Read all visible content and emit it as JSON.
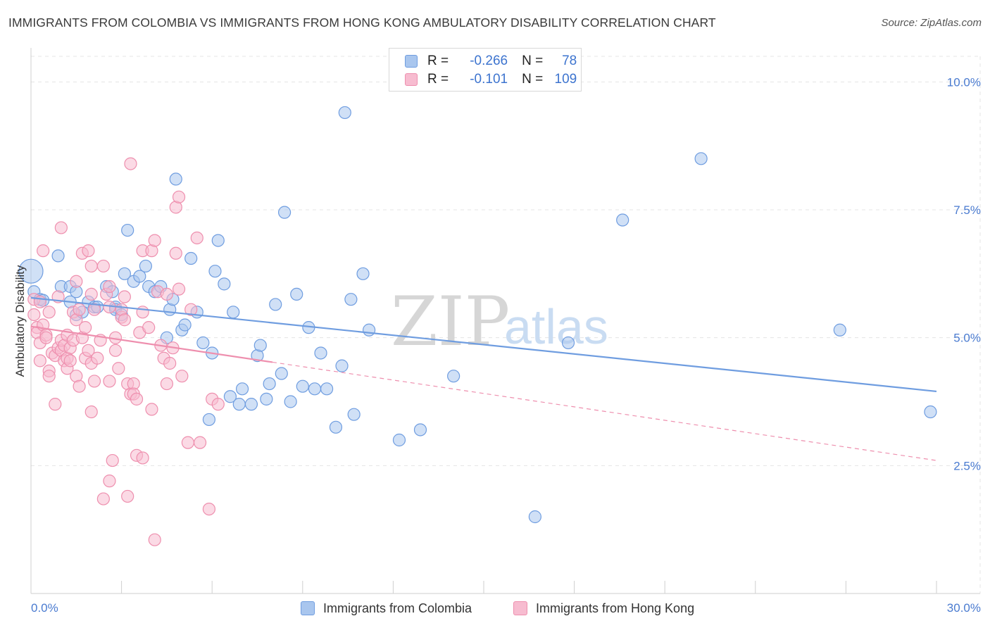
{
  "title": "IMMIGRANTS FROM COLOMBIA VS IMMIGRANTS FROM HONG KONG AMBULATORY DISABILITY CORRELATION CHART",
  "source": "Source: ZipAtlas.com",
  "watermark": {
    "part1": "ZIP",
    "part2": "atlas"
  },
  "legend": {
    "r_label": "R =",
    "n_label": "N =",
    "items": [
      {
        "name": "Immigrants from Colombia",
        "r": "-0.266",
        "n": "78",
        "fill": "#a9c6ee",
        "stroke": "#6f9de0"
      },
      {
        "name": "Immigrants from Hong Kong",
        "r": "-0.101",
        "n": "109",
        "fill": "#f7bcd0",
        "stroke": "#ee8fae"
      }
    ]
  },
  "chart_data": {
    "type": "scatter",
    "title": "IMMIGRANTS FROM COLOMBIA VS IMMIGRANTS FROM HONG KONG AMBULATORY DISABILITY CORRELATION CHART",
    "xlabel": "",
    "ylabel": "Ambulatory Disability",
    "xlim": [
      0,
      30
    ],
    "ylim": [
      0,
      10.5
    ],
    "x_tick_labels": [
      "0.0%",
      "30.0%"
    ],
    "y_ticks": [
      2.5,
      5.0,
      7.5,
      10.0
    ],
    "y_tick_labels": [
      "2.5%",
      "5.0%",
      "7.5%",
      "10.0%"
    ],
    "grid": true,
    "series": [
      {
        "name": "Immigrants from Colombia",
        "color": "#6f9de0",
        "fill": "#a9c6ee",
        "trend": {
          "x0": 0.0,
          "y0": 5.78,
          "x1": 30.0,
          "y1": 3.95,
          "dashed_from": null
        },
        "points": [
          [
            0.0,
            6.3
          ],
          [
            0.1,
            5.9
          ],
          [
            0.3,
            5.75
          ],
          [
            0.4,
            5.73
          ],
          [
            0.9,
            6.6
          ],
          [
            1.0,
            6.0
          ],
          [
            1.3,
            6.0
          ],
          [
            1.3,
            5.7
          ],
          [
            1.5,
            5.9
          ],
          [
            1.5,
            5.45
          ],
          [
            1.7,
            5.5
          ],
          [
            1.9,
            5.7
          ],
          [
            2.1,
            5.6
          ],
          [
            2.2,
            5.6
          ],
          [
            2.5,
            6.0
          ],
          [
            2.7,
            5.9
          ],
          [
            2.8,
            5.6
          ],
          [
            2.8,
            5.55
          ],
          [
            3.0,
            5.45
          ],
          [
            3.1,
            6.25
          ],
          [
            3.2,
            7.1
          ],
          [
            3.4,
            6.1
          ],
          [
            3.6,
            6.2
          ],
          [
            3.8,
            6.4
          ],
          [
            3.9,
            6.0
          ],
          [
            4.1,
            5.9
          ],
          [
            4.3,
            6.0
          ],
          [
            4.5,
            5.0
          ],
          [
            4.6,
            5.55
          ],
          [
            4.7,
            5.75
          ],
          [
            4.8,
            8.1
          ],
          [
            5.0,
            5.15
          ],
          [
            5.1,
            5.25
          ],
          [
            5.3,
            6.55
          ],
          [
            5.5,
            5.5
          ],
          [
            5.7,
            4.9
          ],
          [
            5.9,
            3.4
          ],
          [
            6.0,
            4.7
          ],
          [
            6.1,
            6.3
          ],
          [
            6.2,
            6.9
          ],
          [
            6.4,
            6.05
          ],
          [
            6.6,
            3.85
          ],
          [
            6.7,
            5.5
          ],
          [
            6.9,
            3.7
          ],
          [
            7.0,
            4.0
          ],
          [
            7.3,
            3.7
          ],
          [
            7.5,
            4.65
          ],
          [
            7.6,
            4.85
          ],
          [
            7.8,
            3.8
          ],
          [
            7.9,
            4.1
          ],
          [
            8.1,
            5.65
          ],
          [
            8.3,
            4.3
          ],
          [
            8.4,
            7.45
          ],
          [
            8.6,
            3.75
          ],
          [
            8.8,
            5.85
          ],
          [
            9.0,
            4.05
          ],
          [
            9.2,
            5.2
          ],
          [
            9.4,
            4.0
          ],
          [
            9.6,
            4.7
          ],
          [
            9.8,
            4.0
          ],
          [
            10.1,
            3.25
          ],
          [
            10.3,
            4.45
          ],
          [
            10.4,
            9.4
          ],
          [
            10.6,
            5.75
          ],
          [
            10.7,
            3.5
          ],
          [
            11.0,
            6.25
          ],
          [
            11.2,
            5.15
          ],
          [
            12.2,
            3.0
          ],
          [
            12.9,
            3.2
          ],
          [
            14.0,
            4.25
          ],
          [
            16.7,
            1.5
          ],
          [
            17.8,
            4.9
          ],
          [
            19.6,
            7.3
          ],
          [
            22.2,
            8.5
          ],
          [
            26.8,
            5.15
          ],
          [
            29.8,
            3.55
          ]
        ]
      },
      {
        "name": "Immigrants from Hong Kong",
        "color": "#ee8fae",
        "fill": "#f7bcd0",
        "trend": {
          "x0": 0.0,
          "y0": 5.22,
          "x1": 30.0,
          "y1": 2.6,
          "dashed_from": 8.0
        },
        "points": [
          [
            0.1,
            5.75
          ],
          [
            0.1,
            5.45
          ],
          [
            0.2,
            5.2
          ],
          [
            0.2,
            5.1
          ],
          [
            0.3,
            4.9
          ],
          [
            0.3,
            4.55
          ],
          [
            0.3,
            5.7
          ],
          [
            0.4,
            5.25
          ],
          [
            0.4,
            6.7
          ],
          [
            0.5,
            5.05
          ],
          [
            0.5,
            5.0
          ],
          [
            0.6,
            4.35
          ],
          [
            0.6,
            4.25
          ],
          [
            0.6,
            5.5
          ],
          [
            0.7,
            4.7
          ],
          [
            0.8,
            3.7
          ],
          [
            0.8,
            4.65
          ],
          [
            0.9,
            5.8
          ],
          [
            0.9,
            4.8
          ],
          [
            1.0,
            4.75
          ],
          [
            1.0,
            7.15
          ],
          [
            1.0,
            4.95
          ],
          [
            1.1,
            4.55
          ],
          [
            1.1,
            4.85
          ],
          [
            1.2,
            4.4
          ],
          [
            1.2,
            4.6
          ],
          [
            1.2,
            5.05
          ],
          [
            1.3,
            4.8
          ],
          [
            1.3,
            4.55
          ],
          [
            1.4,
            5.5
          ],
          [
            1.4,
            4.95
          ],
          [
            1.5,
            4.25
          ],
          [
            1.5,
            5.35
          ],
          [
            1.5,
            6.1
          ],
          [
            1.6,
            4.05
          ],
          [
            1.6,
            5.55
          ],
          [
            1.7,
            6.65
          ],
          [
            1.7,
            5.0
          ],
          [
            1.8,
            4.6
          ],
          [
            1.8,
            5.2
          ],
          [
            1.9,
            4.75
          ],
          [
            1.9,
            6.7
          ],
          [
            2.0,
            6.4
          ],
          [
            2.0,
            5.85
          ],
          [
            2.0,
            4.5
          ],
          [
            2.0,
            3.55
          ],
          [
            2.1,
            4.15
          ],
          [
            2.1,
            5.55
          ],
          [
            2.2,
            4.6
          ],
          [
            2.3,
            4.95
          ],
          [
            2.4,
            6.4
          ],
          [
            2.4,
            1.85
          ],
          [
            2.5,
            5.85
          ],
          [
            2.6,
            6.0
          ],
          [
            2.6,
            5.6
          ],
          [
            2.6,
            4.15
          ],
          [
            2.6,
            2.2
          ],
          [
            2.7,
            2.6
          ],
          [
            2.8,
            4.75
          ],
          [
            2.8,
            5.0
          ],
          [
            2.9,
            4.4
          ],
          [
            3.0,
            5.4
          ],
          [
            3.0,
            5.55
          ],
          [
            3.1,
            5.8
          ],
          [
            3.1,
            5.35
          ],
          [
            3.2,
            4.1
          ],
          [
            3.2,
            1.9
          ],
          [
            3.3,
            3.9
          ],
          [
            3.3,
            8.4
          ],
          [
            3.4,
            4.1
          ],
          [
            3.4,
            3.9
          ],
          [
            3.5,
            3.8
          ],
          [
            3.5,
            2.7
          ],
          [
            3.6,
            5.1
          ],
          [
            3.7,
            6.7
          ],
          [
            3.7,
            2.65
          ],
          [
            3.7,
            5.5
          ],
          [
            3.9,
            5.2
          ],
          [
            4.0,
            6.7
          ],
          [
            4.0,
            3.6
          ],
          [
            4.1,
            1.05
          ],
          [
            4.1,
            6.9
          ],
          [
            4.2,
            5.9
          ],
          [
            4.3,
            4.85
          ],
          [
            4.4,
            4.6
          ],
          [
            4.5,
            4.1
          ],
          [
            4.5,
            5.85
          ],
          [
            4.6,
            4.5
          ],
          [
            4.7,
            4.8
          ],
          [
            4.8,
            6.65
          ],
          [
            4.8,
            7.55
          ],
          [
            4.9,
            7.75
          ],
          [
            4.9,
            5.95
          ],
          [
            5.0,
            4.25
          ],
          [
            5.2,
            2.95
          ],
          [
            5.3,
            5.55
          ],
          [
            5.5,
            6.95
          ],
          [
            5.6,
            2.95
          ],
          [
            5.9,
            1.65
          ],
          [
            6.0,
            3.8
          ],
          [
            6.2,
            3.7
          ]
        ]
      }
    ]
  }
}
